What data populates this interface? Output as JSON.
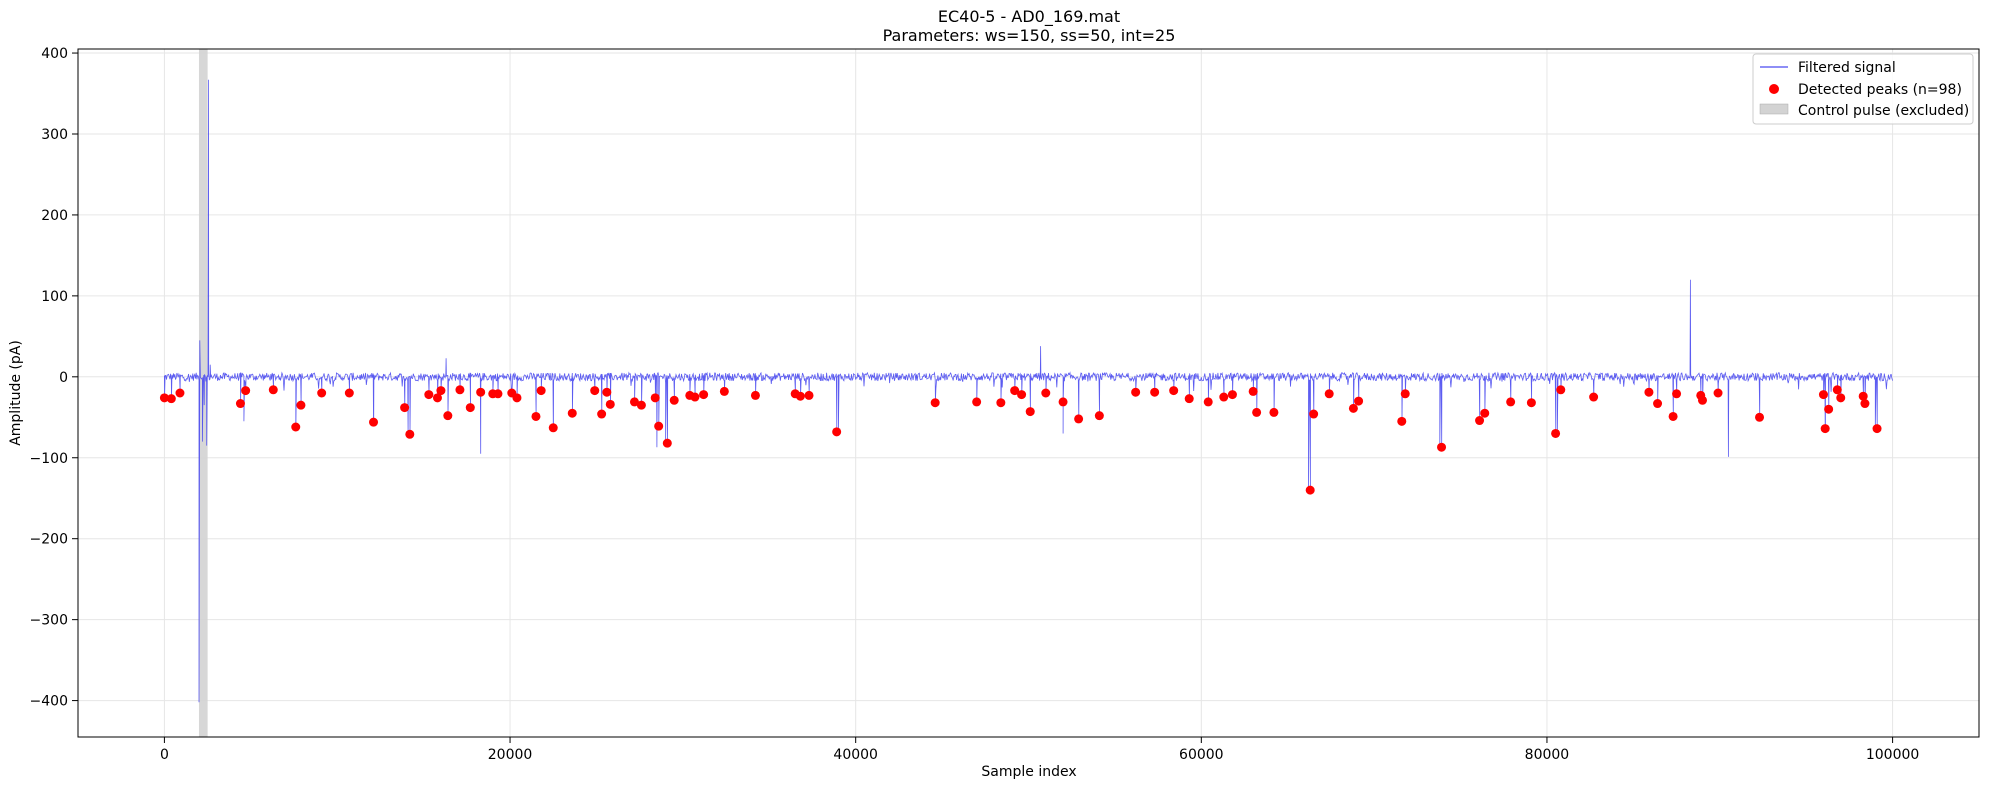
{
  "chart_data": {
    "type": "line",
    "title": "EC40-5 - AD0_169.mat",
    "subtitle": "Parameters: ws=150, ss=50, int=25",
    "xlabel": "Sample index",
    "ylabel": "Amplitude (pA)",
    "xlim": [
      -5000,
      105000
    ],
    "ylim": [
      -445,
      405
    ],
    "x_ticks": [
      0,
      20000,
      40000,
      60000,
      80000,
      100000
    ],
    "x_tick_labels": [
      "0",
      "20000",
      "40000",
      "60000",
      "80000",
      "100000"
    ],
    "y_ticks": [
      -400,
      -300,
      -200,
      -100,
      0,
      100,
      200,
      300,
      400
    ],
    "y_tick_labels": [
      "−400",
      "−300",
      "−200",
      "−100",
      "0",
      "100",
      "200",
      "300",
      "400"
    ],
    "grid": true,
    "legend_position": "top-right",
    "colors": {
      "signal": "#4a4af0",
      "peaks": "#ff0000",
      "control": "#d3d3d3"
    },
    "series": [
      {
        "name": "Filtered signal",
        "kind": "line",
        "x_range": [
          0,
          100000
        ],
        "baseline": 0,
        "noise_amplitude": 5,
        "spikes": [
          [
            2000,
            -402
          ],
          [
            2050,
            45
          ],
          [
            2200,
            -80
          ],
          [
            2300,
            -35
          ],
          [
            2450,
            -85
          ],
          [
            2550,
            367
          ],
          [
            2650,
            15
          ],
          [
            4600,
            -55
          ],
          [
            7600,
            -60
          ],
          [
            12100,
            -55
          ],
          [
            14100,
            -70
          ],
          [
            16300,
            23
          ],
          [
            18300,
            -95
          ],
          [
            22500,
            -60
          ],
          [
            28500,
            -87
          ],
          [
            29000,
            -82
          ],
          [
            39000,
            -68
          ],
          [
            50700,
            38
          ],
          [
            52000,
            -70
          ],
          [
            66200,
            -140
          ],
          [
            73800,
            -87
          ],
          [
            80600,
            -72
          ],
          [
            88300,
            120
          ],
          [
            90500,
            -99
          ],
          [
            96100,
            -62
          ],
          [
            99000,
            -64
          ]
        ]
      },
      {
        "name": "Detected peaks (n=98)",
        "kind": "scatter",
        "points": [
          [
            0,
            -26
          ],
          [
            400,
            -27
          ],
          [
            900,
            -20
          ],
          [
            4400,
            -33
          ],
          [
            4700,
            -17
          ],
          [
            6300,
            -16
          ],
          [
            7600,
            -62
          ],
          [
            7900,
            -35
          ],
          [
            9100,
            -20
          ],
          [
            10700,
            -20
          ],
          [
            12100,
            -56
          ],
          [
            13900,
            -38
          ],
          [
            14200,
            -71
          ],
          [
            15300,
            -22
          ],
          [
            15800,
            -26
          ],
          [
            16000,
            -17
          ],
          [
            16400,
            -48
          ],
          [
            17100,
            -16
          ],
          [
            17700,
            -38
          ],
          [
            18300,
            -19
          ],
          [
            19000,
            -21
          ],
          [
            19300,
            -21
          ],
          [
            20100,
            -20
          ],
          [
            20400,
            -26
          ],
          [
            21500,
            -49
          ],
          [
            21800,
            -17
          ],
          [
            22500,
            -63
          ],
          [
            23600,
            -45
          ],
          [
            24900,
            -17
          ],
          [
            25300,
            -46
          ],
          [
            25600,
            -19
          ],
          [
            25800,
            -34
          ],
          [
            27200,
            -31
          ],
          [
            27600,
            -35
          ],
          [
            28400,
            -26
          ],
          [
            28600,
            -61
          ],
          [
            29100,
            -82
          ],
          [
            29500,
            -29
          ],
          [
            30400,
            -23
          ],
          [
            30700,
            -25
          ],
          [
            31200,
            -22
          ],
          [
            32400,
            -18
          ],
          [
            34200,
            -23
          ],
          [
            36500,
            -21
          ],
          [
            36800,
            -24
          ],
          [
            37300,
            -23
          ],
          [
            38900,
            -68
          ],
          [
            44600,
            -32
          ],
          [
            47000,
            -31
          ],
          [
            48400,
            -32
          ],
          [
            49200,
            -17
          ],
          [
            49600,
            -22
          ],
          [
            50100,
            -43
          ],
          [
            51000,
            -20
          ],
          [
            52000,
            -31
          ],
          [
            52900,
            -52
          ],
          [
            54100,
            -48
          ],
          [
            56200,
            -19
          ],
          [
            57300,
            -19
          ],
          [
            58400,
            -17
          ],
          [
            59300,
            -27
          ],
          [
            60400,
            -31
          ],
          [
            61300,
            -25
          ],
          [
            61800,
            -22
          ],
          [
            63000,
            -18
          ],
          [
            63200,
            -44
          ],
          [
            64200,
            -44
          ],
          [
            66300,
            -140
          ],
          [
            66500,
            -46
          ],
          [
            67400,
            -21
          ],
          [
            68800,
            -39
          ],
          [
            69100,
            -30
          ],
          [
            71600,
            -55
          ],
          [
            71800,
            -21
          ],
          [
            73900,
            -87
          ],
          [
            76100,
            -54
          ],
          [
            76400,
            -45
          ],
          [
            77900,
            -31
          ],
          [
            79100,
            -32
          ],
          [
            80500,
            -70
          ],
          [
            80800,
            -16
          ],
          [
            82700,
            -25
          ],
          [
            85900,
            -19
          ],
          [
            86400,
            -33
          ],
          [
            87300,
            -49
          ],
          [
            87500,
            -21
          ],
          [
            88900,
            -23
          ],
          [
            89000,
            -29
          ],
          [
            89900,
            -20
          ],
          [
            92300,
            -50
          ],
          [
            96000,
            -22
          ],
          [
            96100,
            -64
          ],
          [
            96300,
            -40
          ],
          [
            96800,
            -16
          ],
          [
            97000,
            -26
          ],
          [
            98300,
            -24
          ],
          [
            98400,
            -33
          ],
          [
            99100,
            -64
          ]
        ]
      },
      {
        "name": "Control pulse (excluded)",
        "kind": "span",
        "x_range": [
          2000,
          2500
        ]
      }
    ]
  }
}
